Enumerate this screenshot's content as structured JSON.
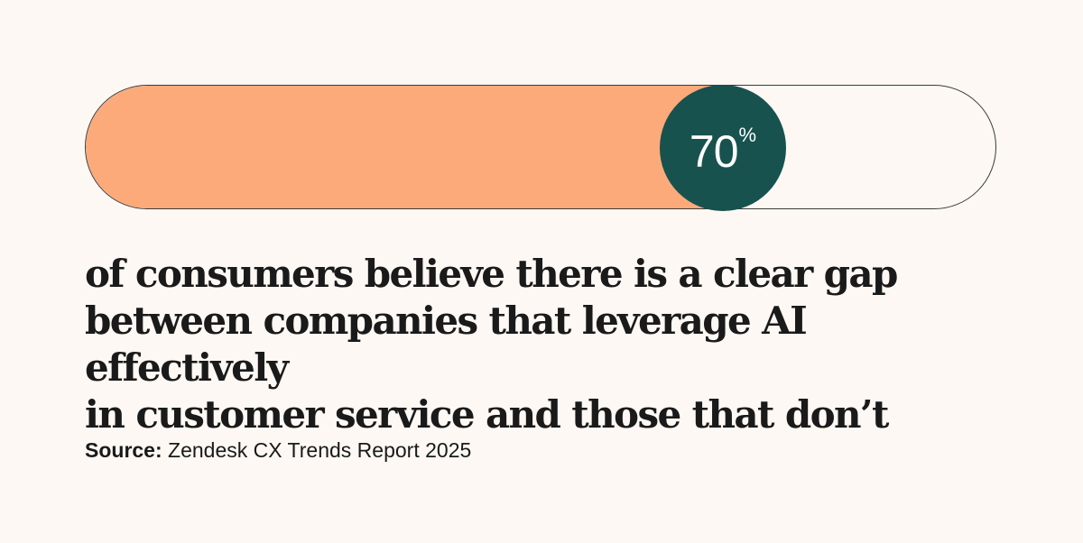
{
  "stat": {
    "value": "70",
    "unit": "%",
    "fraction": 0.7,
    "fill_color": "#fdaa7b",
    "knob_color": "#17524f",
    "track_border_color": "#3a3a3a",
    "background_color": "#fdf8f3"
  },
  "statement": {
    "lines": [
      "of consumers believe there is a clear gap",
      "between companies that leverage AI effectively",
      "in customer service and those that don’t"
    ]
  },
  "source": {
    "label": "Source:",
    "text": "Zendesk CX Trends Report 2025"
  }
}
